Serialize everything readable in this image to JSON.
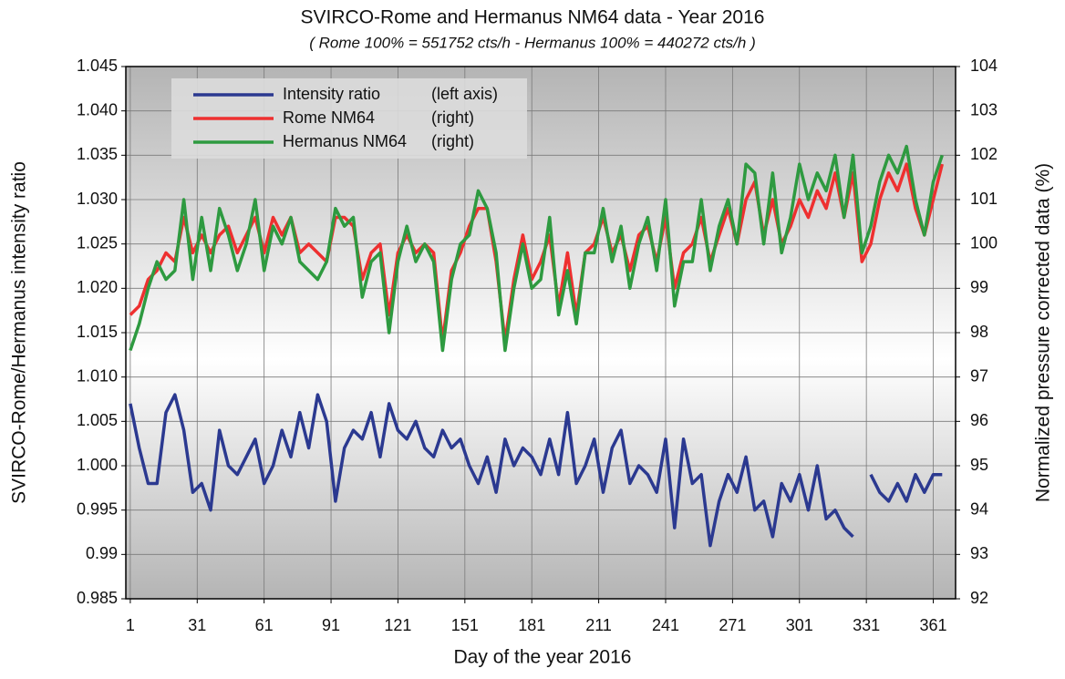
{
  "chart_data": {
    "type": "line",
    "title": "SVIRCO-Rome and Hermanus NM64 data - Year 2016",
    "subtitle": "( Rome 100% = 551752 cts/h - Hermanus 100% = 440272 cts/h )",
    "xlabel": "Day of the year 2016",
    "ylabel": "SVIRCO-Rome/Hermanus intensity ratio",
    "y2label": "Normalized pressure corrected data (%)",
    "xlim": [
      -1,
      371
    ],
    "xticks": [
      1,
      31,
      61,
      91,
      121,
      151,
      181,
      211,
      241,
      271,
      301,
      331,
      361
    ],
    "ylim": [
      0.985,
      1.045
    ],
    "yticks": [
      0.985,
      0.99,
      0.995,
      {
        "value": 1,
        "label": "1.000"
      },
      1.005,
      {
        "value": 1.01,
        "label": "1.010"
      },
      1.015,
      {
        "value": 1.02,
        "label": "1.020"
      },
      1.025,
      {
        "value": 1.03,
        "label": "1.030"
      },
      1.035,
      {
        "value": 1.04,
        "label": "1.040"
      },
      1.045
    ],
    "y2lim": [
      92,
      104
    ],
    "y2ticks": [
      92,
      93,
      94,
      95,
      96,
      97,
      98,
      99,
      100,
      101,
      102,
      103,
      104
    ],
    "grid": true,
    "legend": "upper left",
    "x": [
      1,
      5,
      9,
      13,
      17,
      21,
      25,
      29,
      33,
      37,
      41,
      45,
      49,
      53,
      57,
      61,
      65,
      69,
      73,
      77,
      81,
      85,
      89,
      93,
      97,
      101,
      105,
      109,
      113,
      117,
      121,
      125,
      129,
      133,
      137,
      141,
      145,
      149,
      153,
      157,
      161,
      165,
      169,
      173,
      177,
      181,
      185,
      189,
      193,
      197,
      201,
      205,
      209,
      213,
      217,
      221,
      225,
      229,
      233,
      237,
      241,
      245,
      249,
      253,
      257,
      261,
      265,
      269,
      273,
      277,
      281,
      285,
      289,
      293,
      297,
      301,
      305,
      309,
      313,
      317,
      321,
      325,
      329,
      333,
      337,
      341,
      345,
      349,
      353,
      357,
      361,
      365
    ],
    "series": [
      {
        "name": "Intensity ratio",
        "legend_note": "(left axis)",
        "color": "#2b3990",
        "axis": "y",
        "values": [
          1.007,
          1.002,
          0.998,
          0.998,
          1.006,
          1.008,
          1.004,
          0.997,
          0.998,
          0.995,
          1.004,
          1.0,
          0.999,
          1.001,
          1.003,
          0.998,
          1.0,
          1.004,
          1.001,
          1.006,
          1.002,
          1.008,
          1.005,
          0.996,
          1.002,
          1.004,
          1.003,
          1.006,
          1.001,
          1.007,
          1.004,
          1.003,
          1.005,
          1.002,
          1.001,
          1.004,
          1.002,
          1.003,
          1.0,
          0.998,
          1.001,
          0.997,
          1.003,
          1.0,
          1.002,
          1.001,
          0.999,
          1.003,
          0.999,
          1.006,
          0.998,
          1.0,
          1.003,
          0.997,
          1.002,
          1.004,
          0.998,
          1.0,
          0.999,
          0.997,
          1.003,
          0.993,
          1.003,
          0.998,
          0.999,
          0.991,
          0.996,
          0.999,
          0.997,
          1.001,
          0.995,
          0.996,
          0.992,
          0.998,
          0.996,
          0.999,
          0.995,
          1.0,
          0.994,
          0.995,
          0.993,
          0.992,
          null,
          0.999,
          0.997,
          0.996,
          0.998,
          0.996,
          0.999,
          0.997,
          0.999,
          0.999
        ]
      },
      {
        "name": "Rome NM64",
        "legend_note": "(right)",
        "color": "#ee3030",
        "axis": "y2",
        "values": [
          98.4,
          98.6,
          99.2,
          99.4,
          99.8,
          99.6,
          100.6,
          99.8,
          100.2,
          99.8,
          100.2,
          100.4,
          99.8,
          100.2,
          100.6,
          99.8,
          100.6,
          100.2,
          100.6,
          99.8,
          100.0,
          99.8,
          99.6,
          100.6,
          100.6,
          100.4,
          99.2,
          99.8,
          100.0,
          98.4,
          99.8,
          100.2,
          99.8,
          100.0,
          99.8,
          97.8,
          99.4,
          99.8,
          100.4,
          100.8,
          100.8,
          99.6,
          97.8,
          99.2,
          100.2,
          99.2,
          99.6,
          100.2,
          98.6,
          99.8,
          98.4,
          99.8,
          100.0,
          100.6,
          99.8,
          100.2,
          99.4,
          100.2,
          100.4,
          99.6,
          100.6,
          99.0,
          99.8,
          100.0,
          100.6,
          99.6,
          100.2,
          100.8,
          100.0,
          101.0,
          101.4,
          100.2,
          101.0,
          100.0,
          100.4,
          101.0,
          100.6,
          101.2,
          100.8,
          101.6,
          100.6,
          101.6,
          99.6,
          100.0,
          101.0,
          101.6,
          101.2,
          101.8,
          100.8,
          100.2,
          101.0,
          101.8
        ]
      },
      {
        "name": "Hermanus NM64",
        "legend_note": "(right)",
        "color": "#2e9a40",
        "axis": "y2",
        "values": [
          97.6,
          98.2,
          99.0,
          99.6,
          99.2,
          99.4,
          101.0,
          99.2,
          100.6,
          99.4,
          100.8,
          100.2,
          99.4,
          100.0,
          101.0,
          99.4,
          100.4,
          100.0,
          100.6,
          99.6,
          99.4,
          99.2,
          99.6,
          100.8,
          100.4,
          100.6,
          98.8,
          99.6,
          99.8,
          98.0,
          99.6,
          100.4,
          99.6,
          100.0,
          99.6,
          97.6,
          99.2,
          100.0,
          100.2,
          101.2,
          100.8,
          99.8,
          97.6,
          99.0,
          100.0,
          99.0,
          99.2,
          100.6,
          98.4,
          99.4,
          98.2,
          99.8,
          99.8,
          100.8,
          99.6,
          100.4,
          99.0,
          100.0,
          100.6,
          99.4,
          101.0,
          98.6,
          99.6,
          99.6,
          101.0,
          99.4,
          100.4,
          101.0,
          100.0,
          101.8,
          101.6,
          100.0,
          101.6,
          99.8,
          100.6,
          101.8,
          101.0,
          101.6,
          101.2,
          102.0,
          100.6,
          102.0,
          99.8,
          100.4,
          101.4,
          102.0,
          101.6,
          102.2,
          101.0,
          100.2,
          101.4,
          102.0
        ]
      }
    ]
  }
}
